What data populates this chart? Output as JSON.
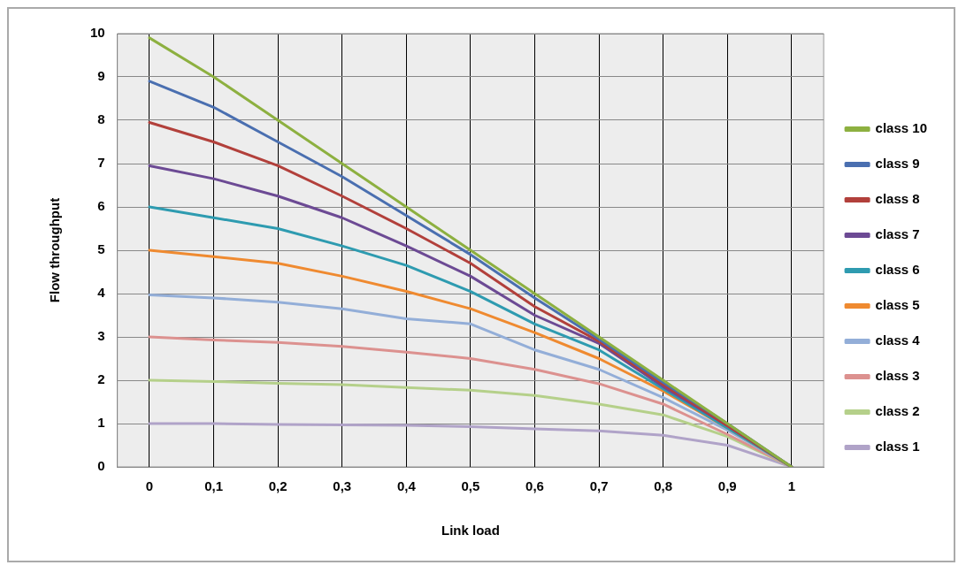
{
  "chart_data": {
    "type": "line",
    "xlabel": "Link load",
    "ylabel": "Flow throughput",
    "x": [
      0,
      0.1,
      0.2,
      0.3,
      0.4,
      0.5,
      0.6,
      0.7,
      0.8,
      0.9,
      1
    ],
    "xlim": [
      -0.05,
      1.05
    ],
    "xticks": [
      0,
      {
        "value": 0.1,
        "label": "0,1"
      },
      {
        "value": 0.2,
        "label": "0,2"
      },
      {
        "value": 0.3,
        "label": "0,3"
      },
      {
        "value": 0.4,
        "label": "0,4"
      },
      {
        "value": 0.5,
        "label": "0,5"
      },
      {
        "value": 0.6,
        "label": "0,6"
      },
      {
        "value": 0.7,
        "label": "0,7"
      },
      {
        "value": 0.8,
        "label": "0,8"
      },
      {
        "value": 0.9,
        "label": "0,9"
      },
      1
    ],
    "ylim": [
      0,
      10
    ],
    "yticks": [
      0,
      1,
      2,
      3,
      4,
      5,
      6,
      7,
      8,
      9,
      10
    ],
    "grid": true,
    "legend": "right",
    "marker": "none",
    "line_style": "solid",
    "series": [
      {
        "name": "class 10",
        "color": "#8db040",
        "values": [
          9.9,
          9.0,
          8.0,
          7.0,
          6.0,
          5.0,
          4.0,
          3.0,
          2.0,
          1.0,
          0
        ]
      },
      {
        "name": "class 9",
        "color": "#4a6fb0",
        "values": [
          8.9,
          8.3,
          7.5,
          6.7,
          5.8,
          4.9,
          3.9,
          2.95,
          1.95,
          1.0,
          0
        ]
      },
      {
        "name": "class 8",
        "color": "#b2403b",
        "values": [
          7.95,
          7.5,
          6.95,
          6.25,
          5.5,
          4.7,
          3.7,
          2.9,
          1.9,
          0.95,
          0
        ]
      },
      {
        "name": "class 7",
        "color": "#6c4a94",
        "values": [
          6.95,
          6.65,
          6.25,
          5.75,
          5.1,
          4.4,
          3.5,
          2.85,
          1.85,
          0.95,
          0
        ]
      },
      {
        "name": "class 6",
        "color": "#2e9bb0",
        "values": [
          6.0,
          5.75,
          5.5,
          5.1,
          4.65,
          4.05,
          3.3,
          2.7,
          1.8,
          0.9,
          0
        ]
      },
      {
        "name": "class 5",
        "color": "#ef8a30",
        "values": [
          5.0,
          4.85,
          4.7,
          4.4,
          4.05,
          3.65,
          3.1,
          2.5,
          1.75,
          0.9,
          0
        ]
      },
      {
        "name": "class 4",
        "color": "#93aed8",
        "values": [
          3.97,
          3.9,
          3.8,
          3.65,
          3.42,
          3.3,
          2.7,
          2.25,
          1.6,
          0.85,
          0
        ]
      },
      {
        "name": "class 3",
        "color": "#dc918f",
        "values": [
          3.0,
          2.93,
          2.87,
          2.78,
          2.65,
          2.5,
          2.25,
          1.92,
          1.45,
          0.75,
          0
        ]
      },
      {
        "name": "class 2",
        "color": "#b5d08a",
        "values": [
          2.0,
          1.97,
          1.93,
          1.9,
          1.83,
          1.77,
          1.65,
          1.45,
          1.2,
          0.7,
          0
        ]
      },
      {
        "name": "class 1",
        "color": "#b0a3c8",
        "values": [
          1.0,
          1.0,
          0.98,
          0.97,
          0.96,
          0.93,
          0.88,
          0.83,
          0.73,
          0.5,
          0
        ]
      }
    ]
  }
}
